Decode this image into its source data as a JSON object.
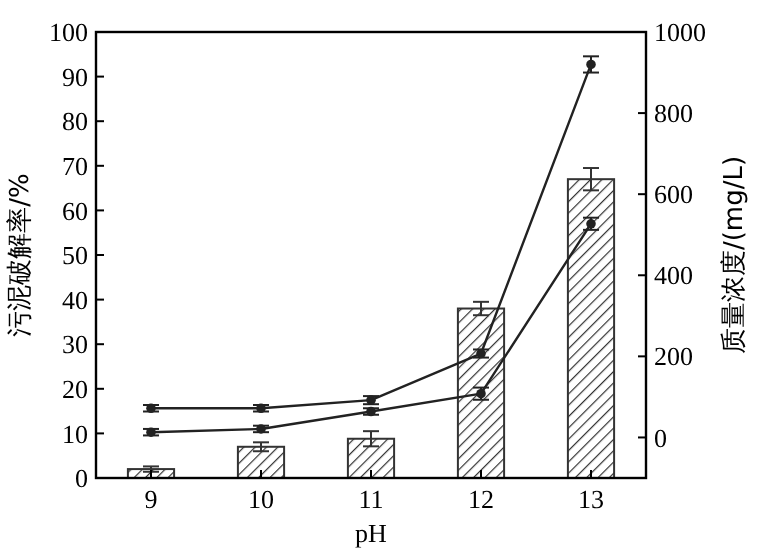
{
  "chart_data": {
    "type": "bar",
    "xlabel": "pH",
    "ylabel": "污泥破解率/%",
    "y2label": "质量浓度/(mg/L)",
    "categories": [
      "9",
      "10",
      "11",
      "12",
      "13"
    ],
    "ylim": [
      0,
      100
    ],
    "yticks": [
      0,
      10,
      20,
      30,
      40,
      50,
      60,
      70,
      80,
      90,
      100
    ],
    "y2lim": [
      -100,
      1000
    ],
    "y2ticks": [
      0,
      200,
      400,
      600,
      800,
      1000
    ],
    "marker": "circle",
    "grid": false,
    "series": [
      {
        "color": "#333333",
        "values": [
          2,
          7,
          8.8,
          38,
          67
        ],
        "errors": [
          0.6,
          1,
          1.7,
          1.5,
          2.5
        ]
      },
      {
        "type": "line",
        "axis": "y2",
        "color": "#222222",
        "values": [
          72,
          72,
          92,
          207,
          920
        ],
        "errors": [
          8,
          8,
          10,
          10,
          20
        ]
      },
      {
        "type": "line",
        "axis": "y2",
        "color": "#222222",
        "values": [
          13,
          21,
          64,
          108,
          527
        ],
        "errors": [
          8,
          8,
          8,
          15,
          15
        ]
      }
    ]
  }
}
